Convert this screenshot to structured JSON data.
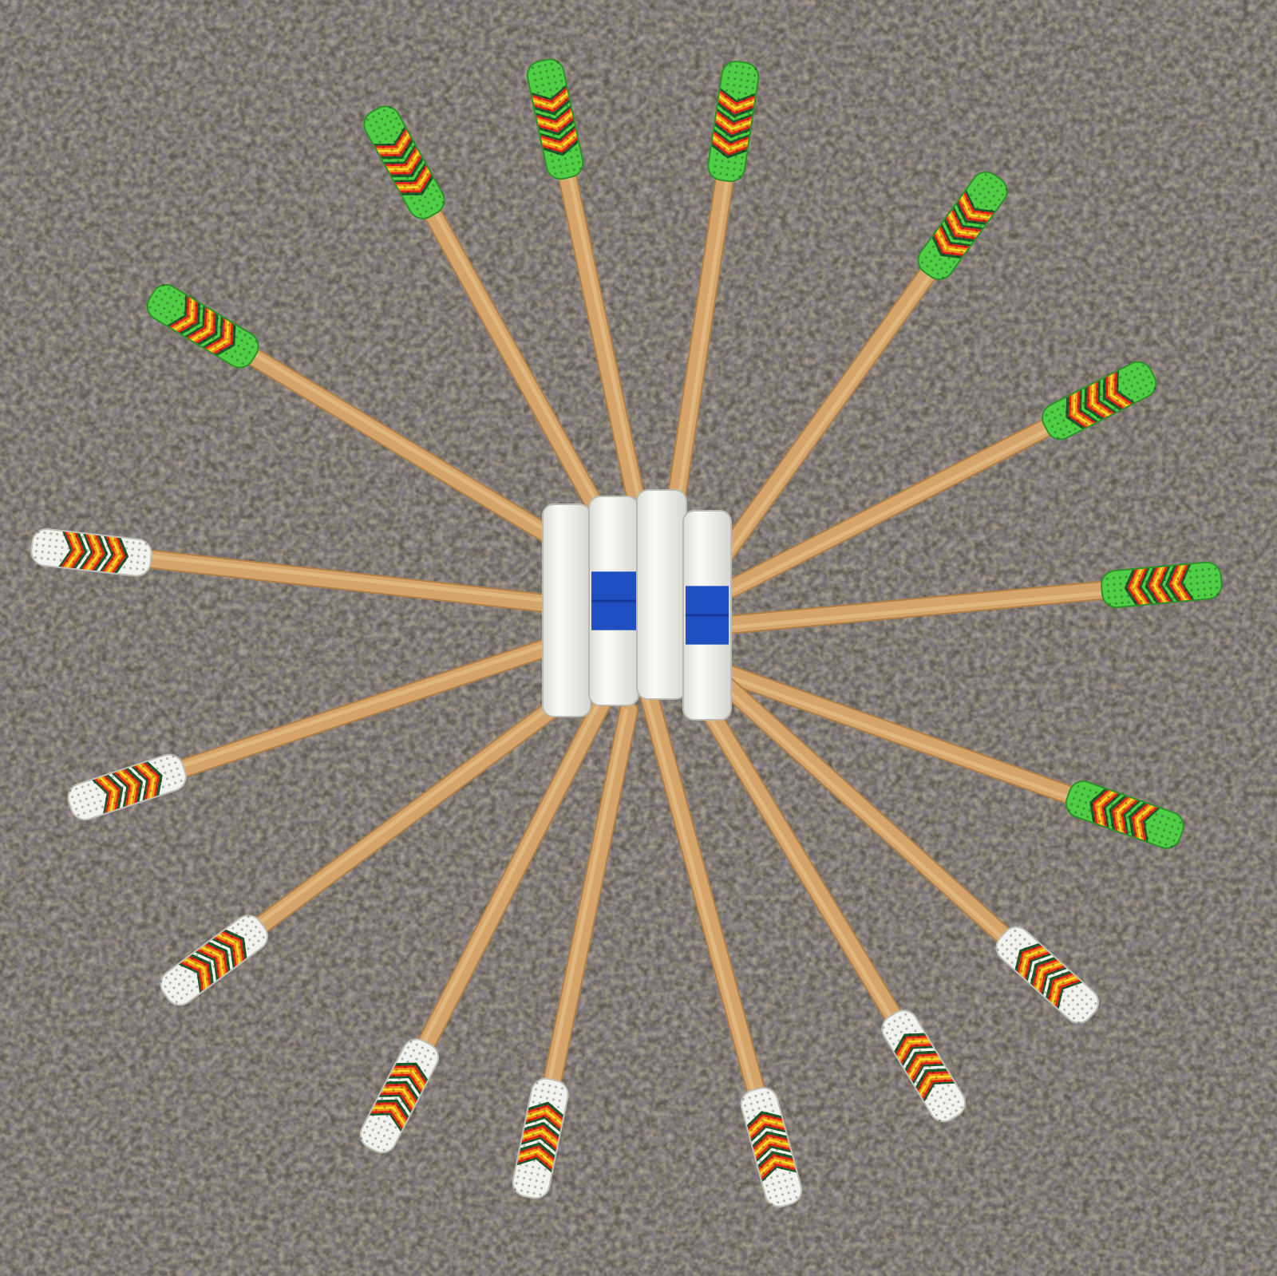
{
  "scene": {
    "subject": "beaded-game-sticks",
    "stick_count": 16,
    "bone_count": 4,
    "colors": {
      "carpet_base": "#5f5a52",
      "carpet_tan": "#9a8259",
      "carpet_blue": "#5a6788",
      "wood": "#d4a46a",
      "wood_edge": "#b07f46",
      "bead_green": "#4fce45",
      "bead_white": "#f2f2ee",
      "bead_red": "#e2231a",
      "bead_orange": "#f58a1c",
      "bead_yellow": "#f4df26",
      "bead_dark": "#1e5a2a",
      "bone": "#f3f3ee",
      "band_blue": "#1f4fc0"
    },
    "sticks": [
      {
        "color": "green"
      },
      {
        "color": "green"
      },
      {
        "color": "green"
      },
      {
        "color": "green"
      },
      {
        "color": "green"
      },
      {
        "color": "green"
      },
      {
        "color": "green"
      },
      {
        "color": "green"
      },
      {
        "color": "white"
      },
      {
        "color": "white"
      },
      {
        "color": "white"
      },
      {
        "color": "white"
      },
      {
        "color": "white"
      },
      {
        "color": "white"
      },
      {
        "color": "white"
      },
      {
        "color": "white"
      }
    ],
    "bones": [
      {
        "band": false
      },
      {
        "band": true
      },
      {
        "band": false
      },
      {
        "band": true
      }
    ]
  }
}
